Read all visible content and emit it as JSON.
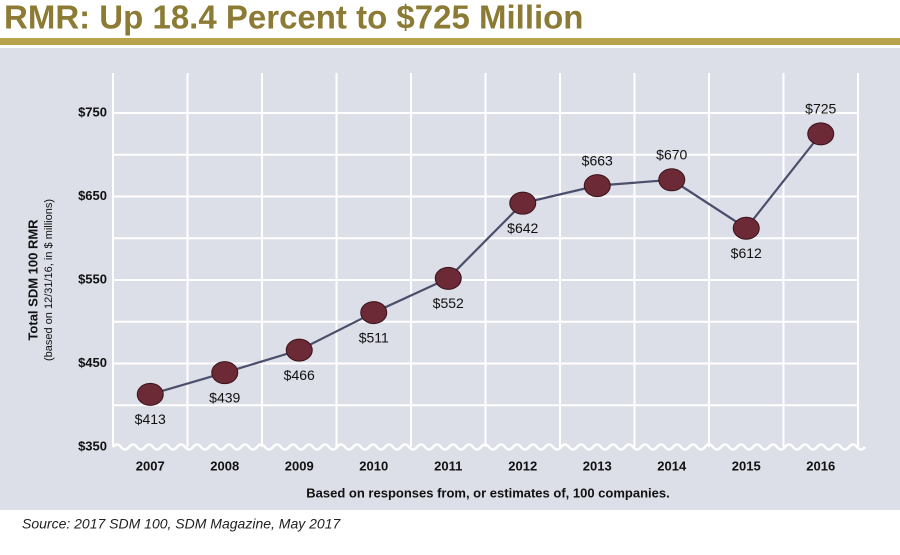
{
  "chart_data": {
    "type": "line",
    "title": "RMR: Up 18.4 Percent to $725 Million",
    "y_label": "Total SDM 100 RMR",
    "y_sublabel": "(based on 12/31/16, in $ millions)",
    "x_label": "Based on responses from, or estimates of, 100 companies.",
    "source": "Source: 2017 SDM 100, SDM Magazine, May 2017",
    "categories": [
      "2007",
      "2008",
      "2009",
      "2010",
      "2011",
      "2012",
      "2013",
      "2014",
      "2015",
      "2016"
    ],
    "values": [
      413,
      439,
      466,
      511,
      552,
      642,
      663,
      670,
      612,
      725
    ],
    "value_labels": [
      "$413",
      "$439",
      "$466",
      "$511",
      "$552",
      "$642",
      "$663",
      "$670",
      "$612",
      "$725"
    ],
    "line_color": "#4b4f6c",
    "marker_color": "#6b2a36",
    "ylim": [
      350,
      750
    ],
    "yticks": [
      {
        "value": 350,
        "label": "$350"
      },
      {
        "value": 450,
        "label": "$450"
      },
      {
        "value": 550,
        "label": "$550"
      },
      {
        "value": 650,
        "label": "$650"
      },
      {
        "value": 750,
        "label": "$750"
      }
    ],
    "y_minor_ticks": [
      400,
      500,
      600,
      700
    ],
    "grid": true
  }
}
